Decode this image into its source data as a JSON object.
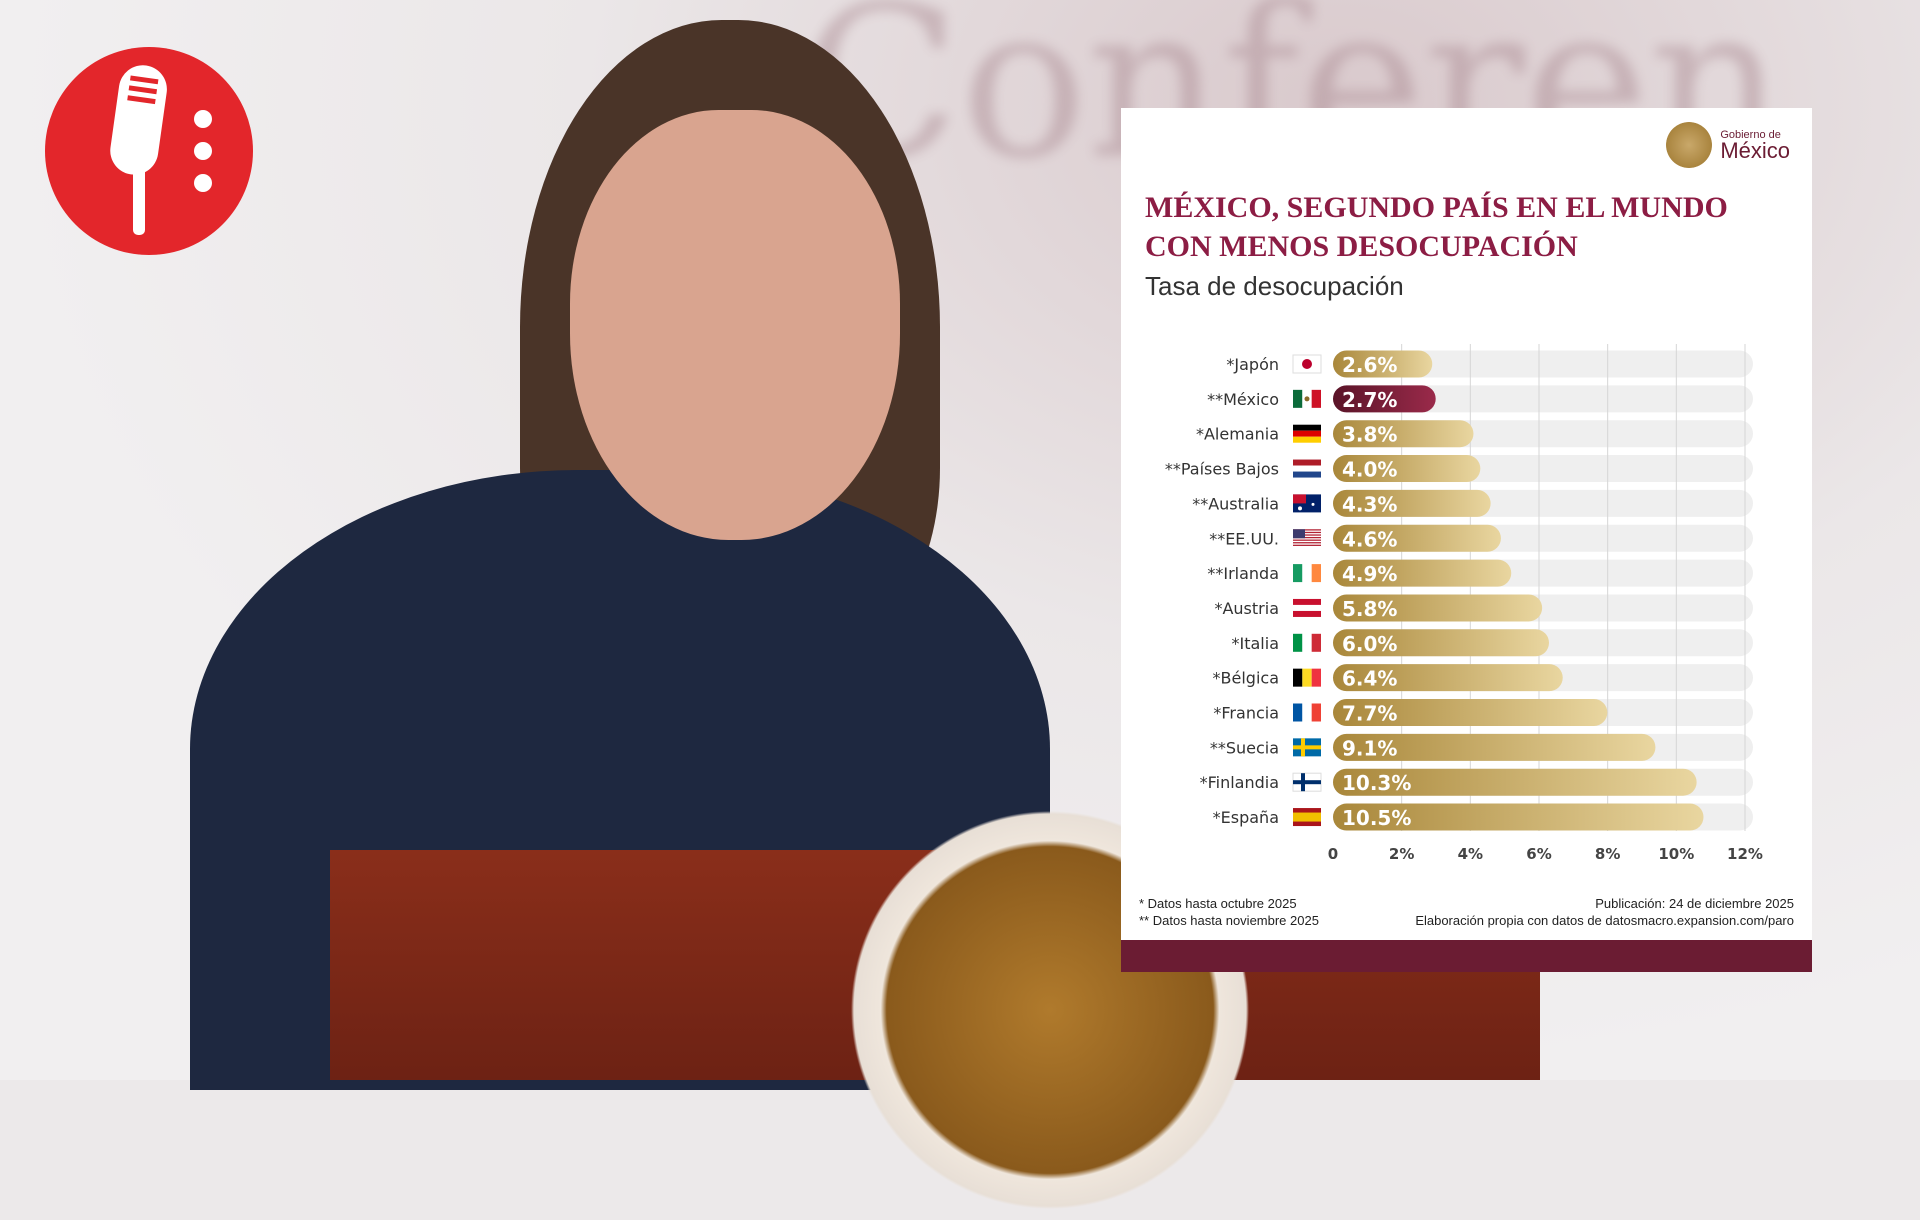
{
  "colors": {
    "accent": "#6b1c33",
    "title": "#8c1d44",
    "bar_gold_start": "#a9873a",
    "bar_gold_end": "#e9d6a0",
    "highlight_bar": "#6b1c33",
    "track": "#efefef",
    "logo_red": "#e3262b"
  },
  "logo": {
    "icon": "microphone-icon"
  },
  "background": {
    "text": "Conferen"
  },
  "card": {
    "gov_logo": {
      "line1": "Gobierno de",
      "line2": "México"
    },
    "title": "MÉXICO, SEGUNDO PAÍS EN EL MUNDO CON MENOS DESOCUPACIÓN",
    "subtitle": "Tasa de desocupación",
    "footnotes": [
      "* Datos hasta octubre 2025",
      "** Datos hasta noviembre 2025"
    ],
    "publication": "Publicación: 24 de diciembre 2025",
    "source": "Elaboración propia con datos de datosmacro.expansion.com/paro"
  },
  "chart_data": {
    "type": "bar",
    "orientation": "horizontal",
    "title": "MÉXICO, SEGUNDO PAÍS EN EL MUNDO CON MENOS DESOCUPACIÓN",
    "subtitle": "Tasa de desocupación",
    "categories": [
      "*Japón",
      "**México",
      "*Alemania",
      "**Países Bajos",
      "**Australia",
      "**EE.UU.",
      "**Irlanda",
      "*Austria",
      "*Italia",
      "*Bélgica",
      "*Francia",
      "**Suecia",
      "*Finlandia",
      "*España"
    ],
    "flags": [
      "jp",
      "mx",
      "de",
      "nl",
      "au",
      "us",
      "ie",
      "at",
      "it",
      "be",
      "fr",
      "se",
      "fi",
      "es"
    ],
    "values": [
      2.6,
      2.7,
      3.8,
      4.0,
      4.3,
      4.6,
      4.9,
      5.8,
      6.0,
      6.4,
      7.7,
      9.1,
      10.3,
      10.5
    ],
    "labels": [
      "2.6%",
      "2.7%",
      "3.8%",
      "4.0%",
      "4.3%",
      "4.6%",
      "4.9%",
      "5.8%",
      "6.0%",
      "6.4%",
      "7.7%",
      "9.1%",
      "10.3%",
      "10.5%"
    ],
    "highlight": "**México",
    "xlim": [
      0,
      12
    ],
    "xticks": [
      "0",
      "2%",
      "4%",
      "6%",
      "8%",
      "10%",
      "12%"
    ],
    "grid": true,
    "legend": "none"
  }
}
